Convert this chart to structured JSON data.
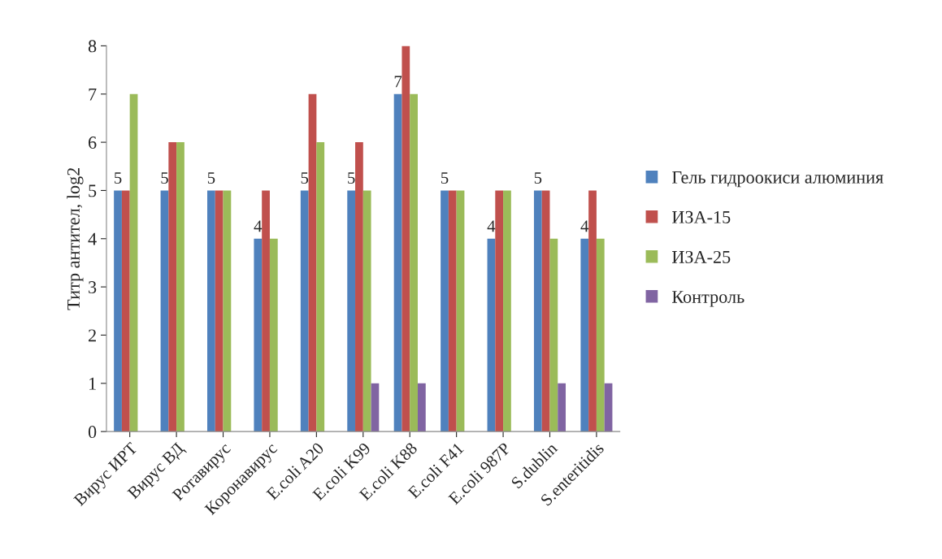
{
  "chart_data": {
    "type": "bar",
    "ylabel": "Титр антител, log2",
    "categories": [
      "Вирус ИРТ",
      "Вирус ВД",
      "Ротавирус",
      "Коронавирус",
      "E.coli A20",
      "E.coli K99",
      "E.coli K88",
      "E.coli F41",
      "E.coli 987P",
      "S.dublin",
      "S.enteritidis"
    ],
    "series": [
      {
        "name": "Гель гидроокиси алюминия",
        "color": "#4f81bd",
        "values": [
          5,
          5,
          5,
          4,
          5,
          5,
          7,
          5,
          4,
          5,
          4
        ],
        "value_labels": [
          "5",
          "5",
          "5",
          "4",
          "5",
          "5",
          "7",
          "5",
          "4",
          "5",
          "4"
        ]
      },
      {
        "name": "ИЗА-15",
        "color": "#c0504d",
        "values": [
          5,
          6,
          5,
          5,
          7,
          6,
          8,
          5,
          5,
          5,
          5
        ]
      },
      {
        "name": "ИЗА-25",
        "color": "#9bbb59",
        "values": [
          7,
          6,
          5,
          4,
          6,
          5,
          7,
          5,
          5,
          4,
          4
        ]
      },
      {
        "name": "Контроль",
        "color": "#8064a2",
        "values": [
          0,
          0,
          0,
          0,
          0,
          1,
          1,
          0,
          0,
          1,
          1
        ]
      }
    ],
    "ylim": [
      0,
      8
    ],
    "yticks": [
      0,
      1,
      2,
      3,
      4,
      5,
      6,
      7,
      8
    ],
    "grid": false,
    "legend": "right"
  }
}
